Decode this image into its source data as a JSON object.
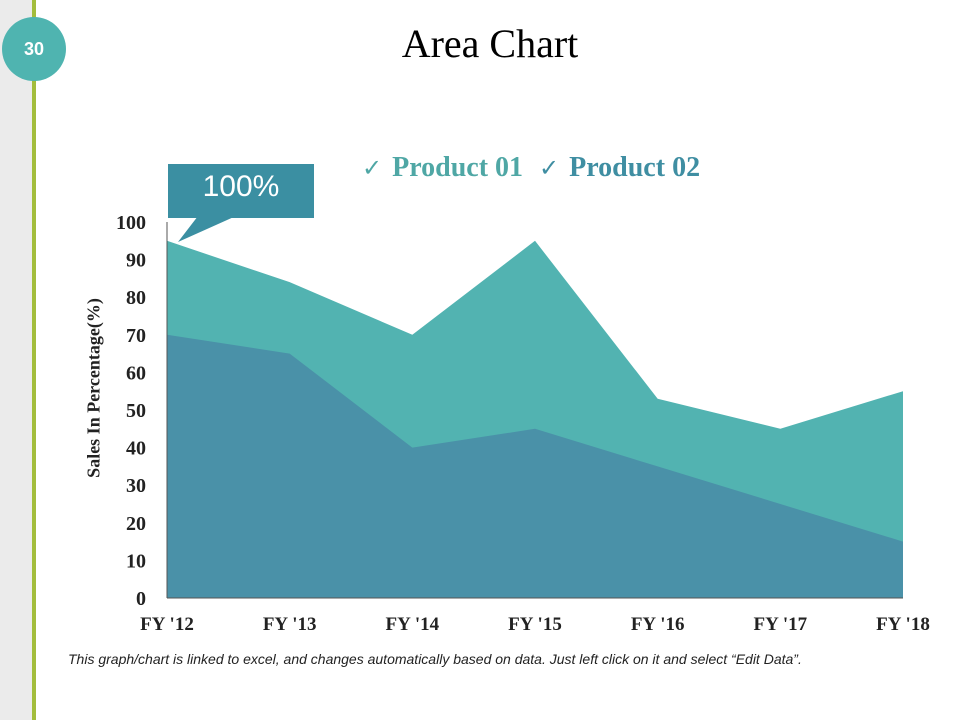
{
  "slide": {
    "page_number": "30",
    "title": "Area Chart",
    "callout": "100%",
    "footnote": "This graph/chart is linked to excel, and changes automatically based on data. Just left click on it and select “Edit Data”."
  },
  "colors": {
    "accent_line": "#a3bd3c",
    "badge": "#4fb4b0",
    "product_01": "#52b3b1",
    "product_02": "#4a91a8",
    "callout": "#3b8fa2",
    "legend_text_01": "#4fa7a5",
    "legend_text_02": "#3f8ea2"
  },
  "chart_data": {
    "type": "area",
    "title": "",
    "xlabel": "",
    "ylabel": "Sales In Percentage(%)",
    "categories": [
      "FY '12",
      "FY '13",
      "FY '14",
      "FY '15",
      "FY '16",
      "FY '17",
      "FY '18"
    ],
    "ylim": [
      0,
      100
    ],
    "yticks": [
      0,
      10,
      20,
      30,
      40,
      50,
      60,
      70,
      80,
      90,
      100
    ],
    "legend_position": "top",
    "grid": false,
    "series": [
      {
        "name": "Product 01",
        "values": [
          95,
          84,
          70,
          95,
          53,
          45,
          55
        ]
      },
      {
        "name": "Product 02",
        "values": [
          70,
          65,
          40,
          45,
          35,
          25,
          15
        ]
      }
    ],
    "legend": [
      "Product 01",
      "Product 02"
    ]
  }
}
